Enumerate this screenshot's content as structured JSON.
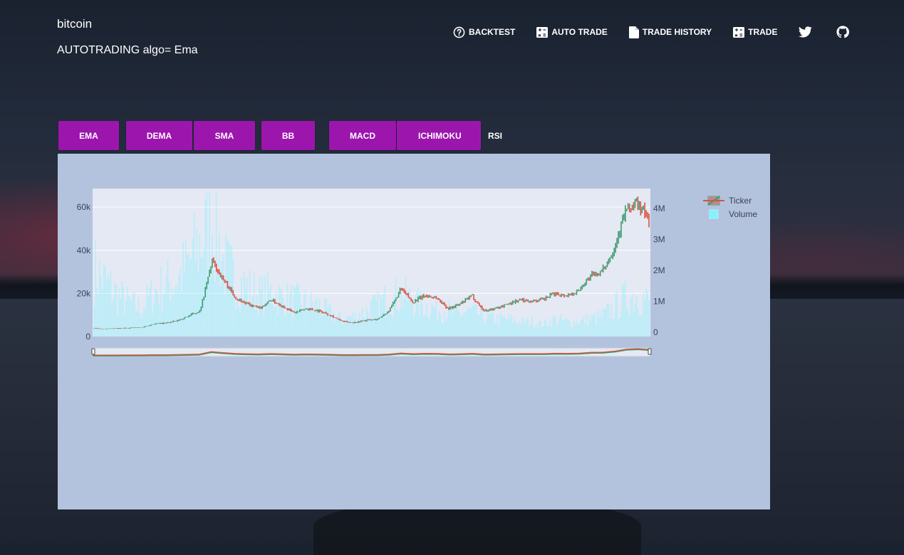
{
  "header": {
    "brand": "bitcoin",
    "subtitle": "AUTOTRADING algo= Ema"
  },
  "nav": {
    "items": [
      {
        "label": "BACKTEST",
        "icon": "help-circle-icon"
      },
      {
        "label": "AUTO TRADE",
        "icon": "calculator-icon"
      },
      {
        "label": "TRADE HISTORY",
        "icon": "document-icon"
      },
      {
        "label": "TRADE",
        "icon": "calculator-icon"
      }
    ],
    "social": [
      "twitter-icon",
      "github-icon"
    ]
  },
  "tabs": [
    "EMA",
    "DEMA",
    "SMA",
    "BB",
    "MACD",
    "ICHIMOKU",
    "RSI"
  ],
  "colors": {
    "tab": "#9c16ae",
    "panel": "#b4c3dd",
    "plot": "#e5e9f4",
    "increasing": "#3d9970",
    "decreasing": "#e0503e",
    "volume": "#7ff4ff"
  },
  "chart_data": {
    "type": "line",
    "description_series": "candlestick price with volume bars",
    "y_price_ticks": [
      "0",
      "20k",
      "40k",
      "60k"
    ],
    "y_volume_ticks": [
      "0",
      "1M",
      "2M",
      "3M",
      "4M"
    ],
    "ylim_price": [
      0,
      66000
    ],
    "ylim_volume": [
      0,
      4500000
    ],
    "legend": [
      "Ticker",
      "Volume"
    ],
    "legend_position": "top-right",
    "rangeslider": true,
    "grid": true,
    "price": [
      3800,
      3500,
      3700,
      4000,
      4200,
      5800,
      6200,
      7200,
      9500,
      12000,
      35000,
      26000,
      18000,
      15000,
      13000,
      17000,
      14000,
      11000,
      13000,
      12000,
      10000,
      7000,
      6500,
      7500,
      8000,
      12000,
      22000,
      16000,
      19000,
      18000,
      13000,
      15000,
      19000,
      12000,
      13000,
      15000,
      17000,
      16500,
      17000,
      20000,
      19000,
      21000,
      28000,
      30000,
      40000,
      58000,
      62000,
      54000
    ],
    "volume": [
      2400000,
      1900000,
      1400000,
      1100000,
      900000,
      1500000,
      1800000,
      2000000,
      2600000,
      3400000,
      4200000,
      2600000,
      2000000,
      1700000,
      1400000,
      1500000,
      1300000,
      1200000,
      1100000,
      1000000,
      700000,
      500000,
      600000,
      800000,
      1000000,
      1300000,
      1400000,
      1200000,
      1000000,
      900000,
      800000,
      700000,
      800000,
      600000,
      500000,
      500000,
      400000,
      400000,
      300000,
      500000,
      400000,
      400000,
      500000,
      600000,
      900000,
      1300000,
      1400000,
      1200000
    ]
  }
}
